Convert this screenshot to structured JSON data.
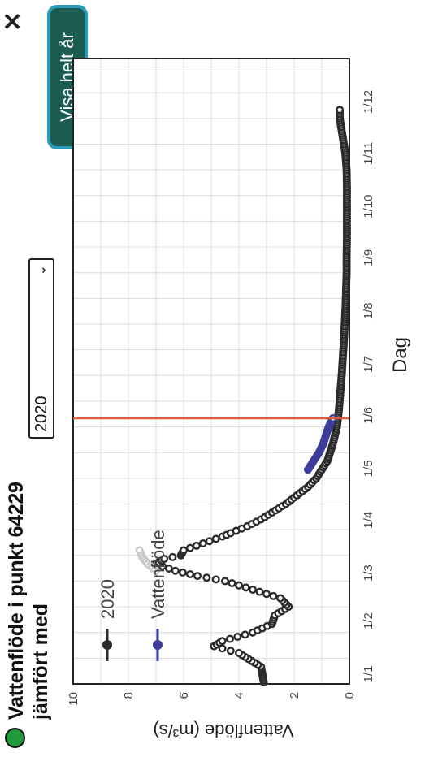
{
  "header": {
    "title": "Vattenflöde i punkt 64229",
    "compare_label": "jämfört med",
    "compare_year": "2020",
    "close_symbol": "✕",
    "full_year_button": "Visa helt år"
  },
  "colors": {
    "status_dot": "#1f9a3a",
    "series_2020": "#2b2b2b",
    "series_current": "#3b3d9a",
    "today_line": "#e65a3c",
    "button_bg": "#1b5b50",
    "button_border": "#2a9bb8"
  },
  "chart_data": {
    "type": "line",
    "xlabel": "Dag",
    "ylabel": "Vattenflöde (m³/s)",
    "x_ticks": [
      "1/1",
      "1/2",
      "1/3",
      "1/4",
      "1/5",
      "1/6",
      "1/7",
      "1/8",
      "1/9",
      "1/10",
      "1/11",
      "1/12"
    ],
    "y_ticks": [
      0,
      2,
      4,
      6,
      8,
      10
    ],
    "xlim": [
      0,
      365
    ],
    "ylim": [
      0,
      10
    ],
    "grid": true,
    "legend_placement": "top-left",
    "today_marker_day": 155,
    "series": [
      {
        "name": "2020",
        "color": "#2b2b2b",
        "x": [
          1,
          10,
          18,
          22,
          25,
          30,
          35,
          40,
          45,
          50,
          55,
          60,
          63,
          66,
          70,
          73,
          75,
          78,
          82,
          86,
          88,
          92,
          96,
          100,
          105,
          110,
          115,
          120,
          125,
          130,
          140,
          150,
          160,
          170,
          180,
          190,
          200,
          210,
          220,
          230,
          240,
          250,
          260,
          270,
          280,
          290,
          300,
          310,
          320,
          330,
          335
        ],
        "y": [
          3.1,
          3.2,
          4.0,
          4.9,
          4.6,
          3.5,
          2.8,
          2.7,
          2.2,
          2.5,
          3.5,
          4.5,
          5.5,
          6.3,
          7.0,
          6.7,
          6.1,
          6.0,
          5.3,
          4.6,
          4.3,
          3.7,
          3.2,
          2.8,
          2.3,
          1.9,
          1.5,
          1.2,
          1.0,
          0.8,
          0.6,
          0.45,
          0.38,
          0.33,
          0.28,
          0.24,
          0.2,
          0.17,
          0.14,
          0.12,
          0.1,
          0.1,
          0.09,
          0.09,
          0.09,
          0.09,
          0.1,
          0.15,
          0.25,
          0.35,
          0.35
        ]
      },
      {
        "name": "Vattenflöde",
        "color": "#3b3d9a",
        "x": [
          125,
          130,
          135,
          140,
          145,
          150,
          155
        ],
        "y": [
          1.5,
          1.3,
          1.1,
          0.95,
          0.85,
          0.75,
          0.6
        ]
      },
      {
        "name": "",
        "color": "#c8c8c8",
        "x": [
          66,
          70,
          74,
          78
        ],
        "y": [
          7.0,
          7.3,
          7.5,
          7.6
        ]
      }
    ]
  }
}
